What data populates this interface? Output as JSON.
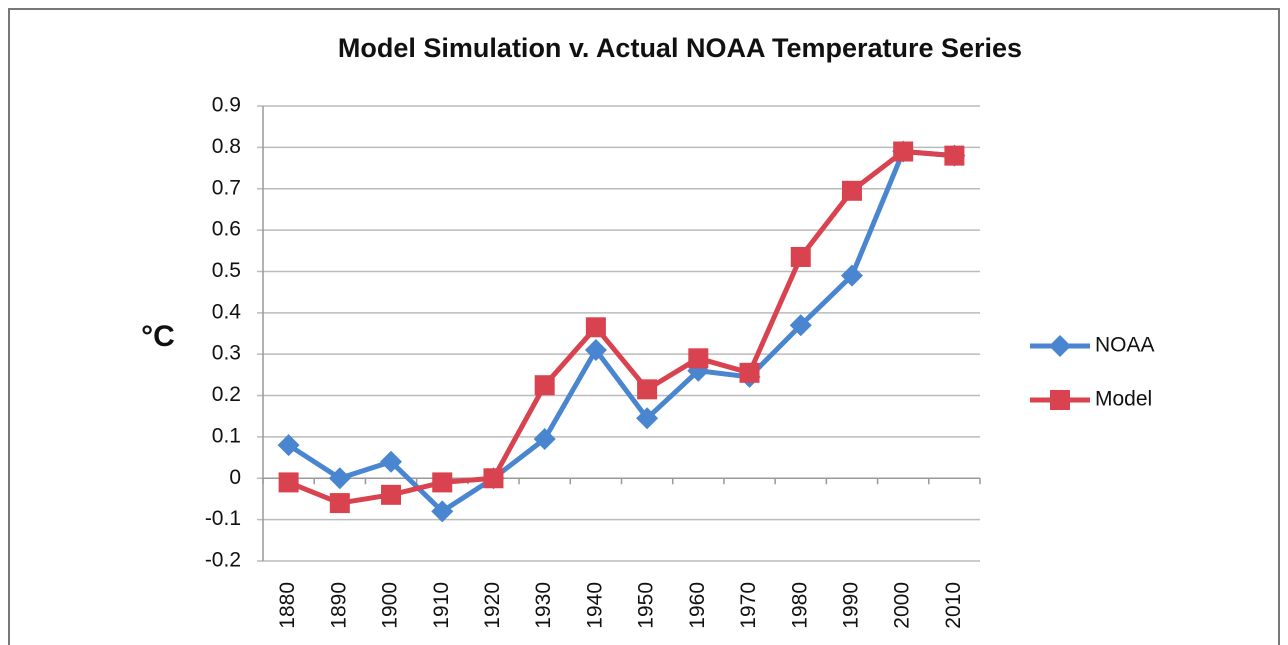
{
  "chart_data": {
    "type": "line",
    "title": "Model Simulation v. Actual NOAA Temperature Series",
    "y_label": "°C",
    "categories": [
      "1880",
      "1890",
      "1900",
      "1910",
      "1920",
      "1930",
      "1940",
      "1950",
      "1960",
      "1970",
      "1980",
      "1990",
      "2000",
      "2010"
    ],
    "series": [
      {
        "name": "NOAA",
        "color": "#4a86d0",
        "marker": "diamond",
        "values": [
          0.08,
          0.0,
          0.04,
          -0.08,
          0.0,
          0.095,
          0.31,
          0.145,
          0.26,
          0.245,
          0.37,
          0.49,
          0.79,
          0.78
        ]
      },
      {
        "name": "Model",
        "color": "#d9434f",
        "marker": "square",
        "values": [
          -0.01,
          -0.06,
          -0.04,
          -0.01,
          0.0,
          0.225,
          0.365,
          0.215,
          0.29,
          0.255,
          0.535,
          0.695,
          0.79,
          0.78
        ]
      }
    ],
    "ylim": [
      -0.2,
      0.9
    ],
    "yticks": [
      -0.2,
      -0.1,
      0,
      0.1,
      0.2,
      0.3,
      0.4,
      0.5,
      0.6,
      0.7,
      0.8,
      0.9
    ],
    "grid": true,
    "legend": "right"
  }
}
